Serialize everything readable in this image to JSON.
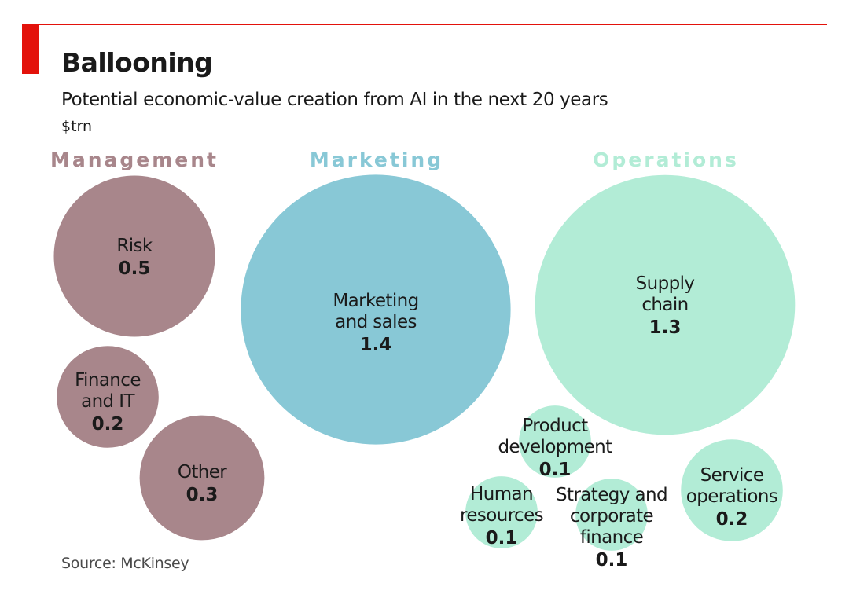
{
  "header": {
    "title": "Ballooning",
    "subtitle": "Potential economic-value creation from AI in the next 20 years",
    "unit": "$trn"
  },
  "footer": {
    "source": "Source: McKinsey"
  },
  "colors": {
    "accent": "#e3120b",
    "management": "#a8868b",
    "management_label": "#a8868b",
    "marketing": "#88c8d6",
    "marketing_label": "#88c8d6",
    "operations": "#b2ecd6",
    "operations_label": "#b2ecd6"
  },
  "chart_data": {
    "type": "bubble",
    "title": "Ballooning",
    "subtitle": "Potential economic-value creation from AI in the next 20 years",
    "unit": "$trn",
    "groups": [
      {
        "name": "Management",
        "color_key": "management",
        "items": [
          {
            "name": "Risk",
            "label_lines": [
              "Risk"
            ],
            "value": 0.5
          },
          {
            "name": "Finance and IT",
            "label_lines": [
              "Finance",
              "and IT"
            ],
            "value": 0.2
          },
          {
            "name": "Other",
            "label_lines": [
              "Other"
            ],
            "value": 0.3
          }
        ]
      },
      {
        "name": "Marketing",
        "color_key": "marketing",
        "items": [
          {
            "name": "Marketing and sales",
            "label_lines": [
              "Marketing",
              "and sales"
            ],
            "value": 1.4
          }
        ]
      },
      {
        "name": "Operations",
        "color_key": "operations",
        "items": [
          {
            "name": "Supply chain",
            "label_lines": [
              "Supply",
              "chain"
            ],
            "value": 1.3
          },
          {
            "name": "Product development",
            "label_lines": [
              "Product",
              "development"
            ],
            "value": 0.1
          },
          {
            "name": "Human resources",
            "label_lines": [
              "Human",
              "resources"
            ],
            "value": 0.1
          },
          {
            "name": "Strategy and corporate finance",
            "label_lines": [
              "Strategy and",
              "corporate",
              "finance"
            ],
            "value": 0.1
          },
          {
            "name": "Service operations",
            "label_lines": [
              "Service",
              "operations"
            ],
            "value": 0.2
          }
        ]
      }
    ]
  }
}
